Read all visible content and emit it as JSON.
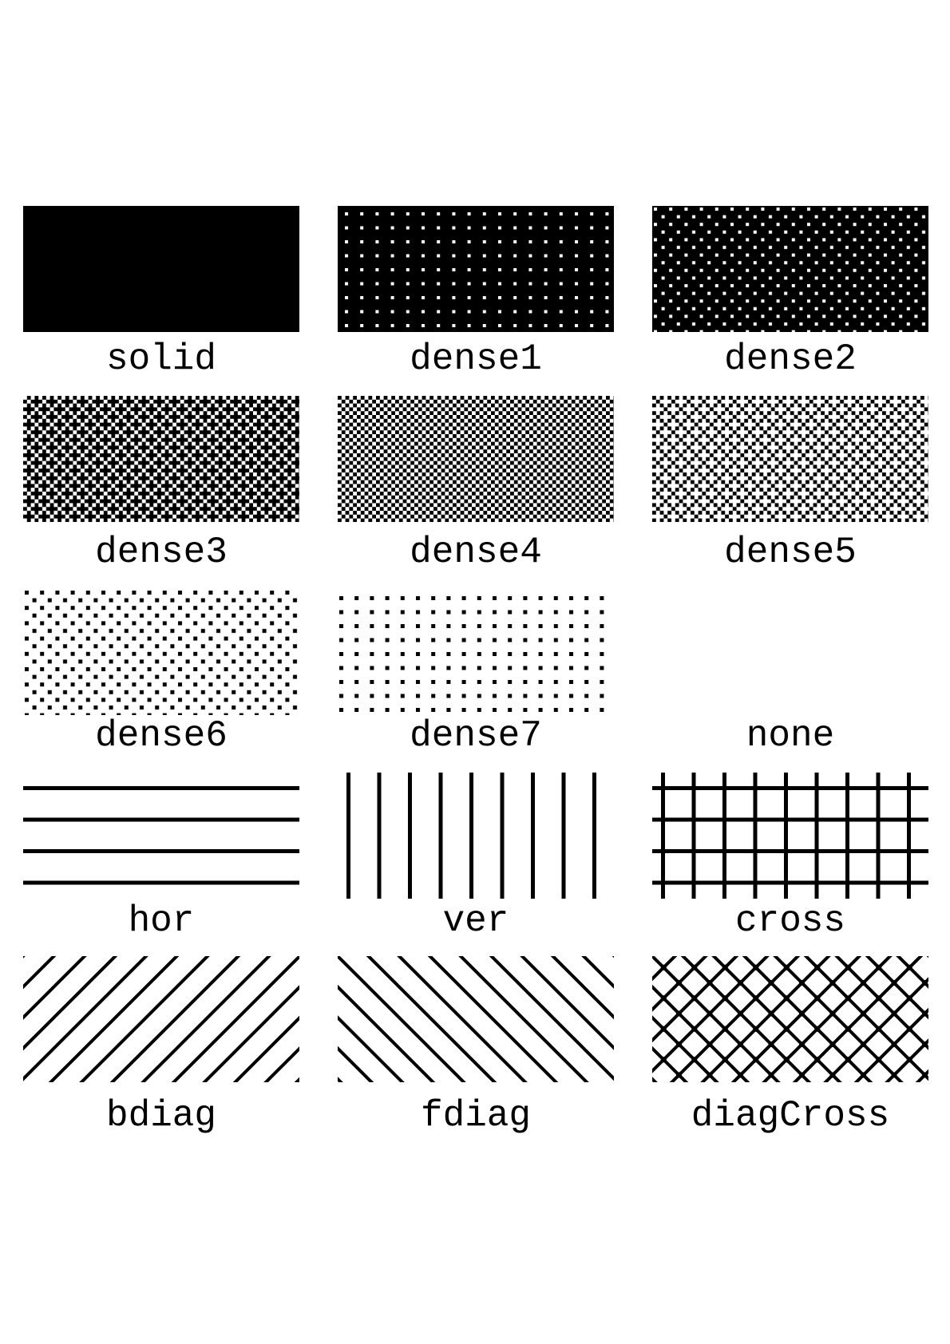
{
  "patterns": [
    {
      "label": "solid"
    },
    {
      "label": "dense1"
    },
    {
      "label": "dense2"
    },
    {
      "label": "dense3"
    },
    {
      "label": "dense4"
    },
    {
      "label": "dense5"
    },
    {
      "label": "dense6"
    },
    {
      "label": "dense7"
    },
    {
      "label": "none"
    },
    {
      "label": "hor"
    },
    {
      "label": "ver"
    },
    {
      "label": "cross"
    },
    {
      "label": "bdiag"
    },
    {
      "label": "fdiag"
    },
    {
      "label": "diagCross"
    }
  ],
  "colors": {
    "ink": "#000000",
    "paper": "#ffffff"
  }
}
